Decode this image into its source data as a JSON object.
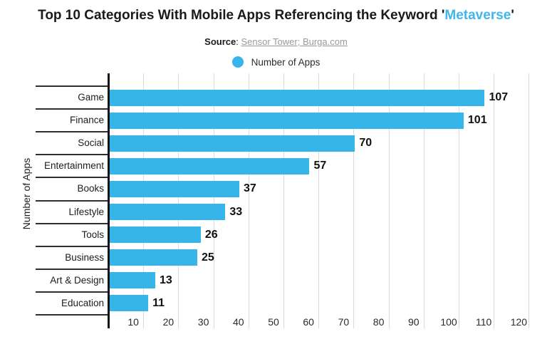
{
  "title": {
    "prefix": "Top 10 Categories With Mobile Apps Referencing the Keyword '",
    "highlight": "Metaverse",
    "suffix": "'"
  },
  "source": {
    "label": "Source",
    "colon": ": ",
    "link": "Sensor Tower; Burga.com"
  },
  "legend": {
    "label": "Number of Apps"
  },
  "colors": {
    "bar": "#36B5EA",
    "title_highlight": "#41B6EC",
    "grid_line": "#DBDBDB",
    "axis_line": "#151515",
    "row_separator": "#2F2F2F",
    "source_link": "#999999",
    "source_text": "#1A1A1A",
    "value_label": "#111111"
  },
  "chart_data": {
    "type": "bar",
    "orientation": "horizontal",
    "title": "Top 10 Categories With Mobile Apps Referencing the Keyword 'Metaverse'",
    "categories": [
      "Game",
      "Finance",
      "Social",
      "Entertainment",
      "Books",
      "Lifestyle",
      "Tools",
      "Business",
      "Art & Design",
      "Education"
    ],
    "series": [
      {
        "name": "Number of Apps",
        "values": [
          107,
          101,
          70,
          57,
          37,
          33,
          26,
          25,
          13,
          11
        ]
      }
    ],
    "ylabel": "Number of Apps",
    "xlabel": "",
    "xlim": [
      0,
      121.5
    ],
    "xticks": [
      10,
      20,
      30,
      40,
      50,
      60,
      70,
      80,
      90,
      100,
      110,
      120
    ],
    "grid": true,
    "legend_position": "top",
    "value_labels": true,
    "source": "Sensor Tower; Burga.com"
  }
}
